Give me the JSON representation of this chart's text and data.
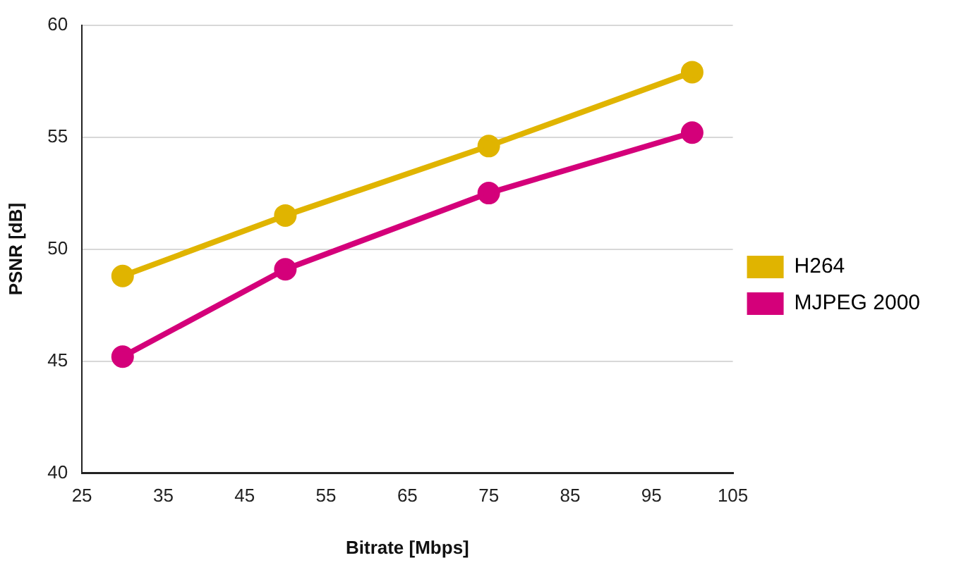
{
  "chart_data": {
    "type": "line",
    "xlabel": "Bitrate [Mbps]",
    "ylabel": "PSNR [dB]",
    "x": [
      30,
      50,
      75,
      100
    ],
    "series": [
      {
        "name": "H264",
        "color": "#e0b400",
        "values": [
          48.8,
          51.5,
          54.6,
          57.9
        ]
      },
      {
        "name": "MJPEG 2000",
        "color": "#d4007a",
        "values": [
          45.2,
          49.1,
          52.5,
          55.2
        ]
      }
    ],
    "xlim": [
      25,
      105
    ],
    "xticks": [
      25,
      35,
      45,
      55,
      65,
      75,
      85,
      95,
      105
    ],
    "ylim": [
      40,
      60
    ],
    "yticks": [
      40,
      45,
      50,
      55,
      60
    ],
    "grid": "y",
    "legend": "right",
    "marker": "circle",
    "line_style": "solid"
  }
}
